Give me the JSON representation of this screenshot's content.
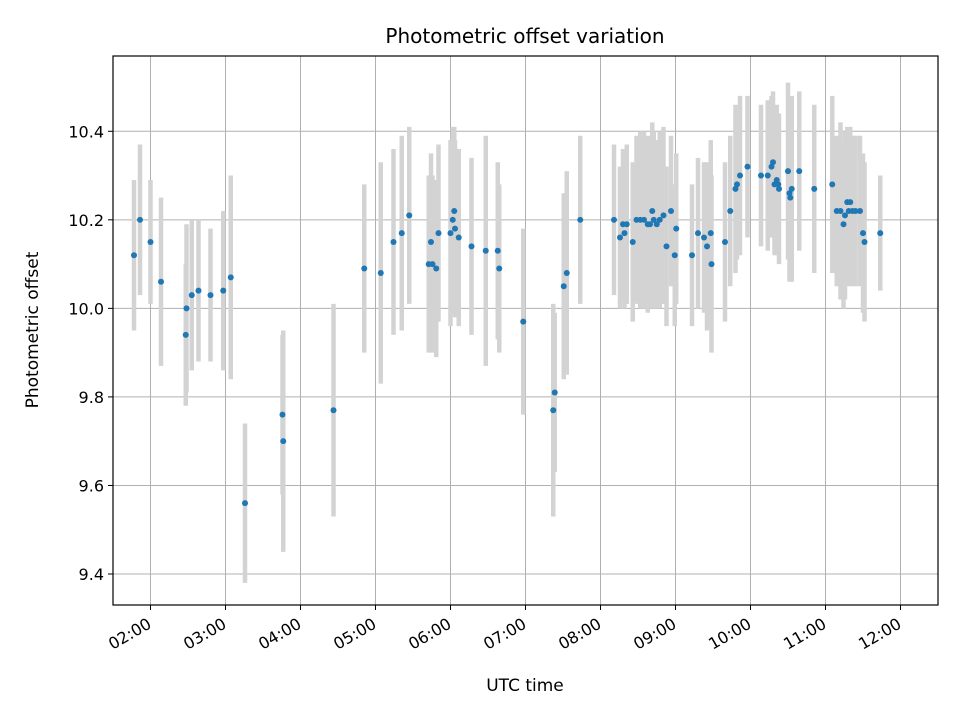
{
  "chart_data": {
    "type": "scatter",
    "title": "Photometric offset variation",
    "xlabel": "UTC time",
    "ylabel": "Photometric offset",
    "x_unit": "hours UTC",
    "xlim": [
      1.5,
      12.5
    ],
    "ylim": [
      9.33,
      10.57
    ],
    "x_ticks": [
      2,
      3,
      4,
      5,
      6,
      7,
      8,
      9,
      10,
      11,
      12
    ],
    "x_tick_labels": [
      "02:00",
      "03:00",
      "04:00",
      "05:00",
      "06:00",
      "07:00",
      "08:00",
      "09:00",
      "10:00",
      "11:00",
      "12:00"
    ],
    "y_ticks": [
      9.4,
      9.6,
      9.8,
      10.0,
      10.2,
      10.4
    ],
    "y_tick_labels": [
      "9.4",
      "9.6",
      "9.8",
      "10.0",
      "10.2",
      "10.4"
    ],
    "grid": true,
    "colors": {
      "marker": "#1f77b4",
      "errorbar": "#d3d3d3",
      "grid": "#b0b0b0"
    },
    "series": [
      {
        "x": [
          1.78,
          1.86,
          2.0,
          2.14,
          2.47,
          2.48,
          2.55,
          2.64,
          2.8,
          2.97,
          3.07,
          3.26,
          3.76,
          3.77,
          4.44,
          4.85,
          5.07,
          5.24,
          5.35,
          5.45,
          5.71,
          5.74,
          5.76,
          5.81,
          5.84,
          6.0,
          6.03,
          6.05,
          6.06,
          6.11,
          6.28,
          6.47,
          6.63,
          6.65,
          6.97,
          7.37,
          7.39,
          7.51,
          7.55,
          7.73,
          8.18,
          8.26,
          8.3,
          8.32,
          8.35,
          8.43,
          8.48,
          8.53,
          8.58,
          8.63,
          8.66,
          8.69,
          8.71,
          8.75,
          8.79,
          8.84,
          8.88,
          8.94,
          8.99,
          9.01,
          9.22,
          9.3,
          9.38,
          9.42,
          9.47,
          9.48,
          9.66,
          9.73,
          9.8,
          9.82,
          9.86,
          9.96,
          10.14,
          10.23,
          10.28,
          10.3,
          10.32,
          10.35,
          10.37,
          10.38,
          10.5,
          10.52,
          10.53,
          10.55,
          10.65,
          10.85,
          11.09,
          11.15,
          11.2,
          11.24,
          11.26,
          11.29,
          11.31,
          11.33,
          11.36,
          11.4,
          11.46,
          11.5,
          11.52,
          11.73
        ],
        "y": [
          10.12,
          10.2,
          10.15,
          10.06,
          9.94,
          10.0,
          10.03,
          10.04,
          10.03,
          10.04,
          10.07,
          9.56,
          9.76,
          9.7,
          9.77,
          10.09,
          10.08,
          10.15,
          10.17,
          10.21,
          10.1,
          10.15,
          10.1,
          10.09,
          10.17,
          10.17,
          10.2,
          10.22,
          10.18,
          10.16,
          10.14,
          10.13,
          10.13,
          10.09,
          9.97,
          9.77,
          9.81,
          10.05,
          10.08,
          10.2,
          10.2,
          10.16,
          10.19,
          10.17,
          10.19,
          10.15,
          10.2,
          10.2,
          10.2,
          10.19,
          10.19,
          10.22,
          10.2,
          10.19,
          10.2,
          10.21,
          10.14,
          10.22,
          10.12,
          10.18,
          10.12,
          10.17,
          10.16,
          10.14,
          10.17,
          10.1,
          10.15,
          10.22,
          10.27,
          10.28,
          10.3,
          10.32,
          10.3,
          10.3,
          10.32,
          10.33,
          10.28,
          10.29,
          10.28,
          10.27,
          10.31,
          10.26,
          10.25,
          10.27,
          10.31,
          10.27,
          10.28,
          10.22,
          10.22,
          10.19,
          10.21,
          10.24,
          10.22,
          10.24,
          10.22,
          10.22,
          10.22,
          10.17,
          10.15,
          10.17
        ],
        "err": [
          0.17,
          0.17,
          0.14,
          0.19,
          0.16,
          0.19,
          0.17,
          0.16,
          0.15,
          0.18,
          0.23,
          0.18,
          0.18,
          0.25,
          0.24,
          0.19,
          0.25,
          0.21,
          0.22,
          0.2,
          0.2,
          0.2,
          0.2,
          0.2,
          0.2,
          0.21,
          0.21,
          0.19,
          0.2,
          0.2,
          0.2,
          0.26,
          0.2,
          0.19,
          0.21,
          0.24,
          0.18,
          0.21,
          0.23,
          0.19,
          0.17,
          0.16,
          0.17,
          0.17,
          0.18,
          0.18,
          0.19,
          0.2,
          0.2,
          0.2,
          0.19,
          0.2,
          0.2,
          0.19,
          0.2,
          0.2,
          0.18,
          0.17,
          0.16,
          0.17,
          0.16,
          0.17,
          0.17,
          0.19,
          0.21,
          0.2,
          0.18,
          0.17,
          0.19,
          0.17,
          0.18,
          0.16,
          0.16,
          0.17,
          0.16,
          0.16,
          0.16,
          0.17,
          0.16,
          0.17,
          0.2,
          0.2,
          0.18,
          0.21,
          0.18,
          0.19,
          0.2,
          0.17,
          0.2,
          0.19,
          0.19,
          0.17,
          0.17,
          0.17,
          0.17,
          0.17,
          0.17,
          0.18,
          0.18,
          0.13
        ]
      }
    ]
  }
}
